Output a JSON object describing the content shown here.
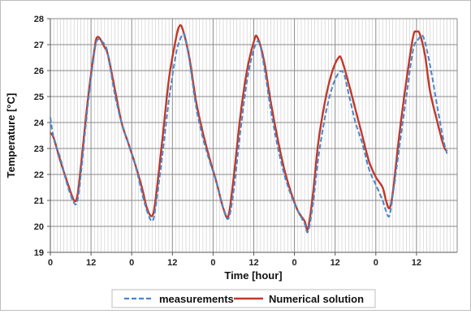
{
  "chart_data": {
    "type": "line",
    "title": "",
    "xlabel": "Time [hour]",
    "ylabel": "Temperature [°C]",
    "xlim": [
      0,
      120
    ],
    "ylim": [
      19,
      28
    ],
    "yticks": [
      19,
      20,
      21,
      22,
      23,
      24,
      25,
      26,
      27,
      28
    ],
    "x_tick_positions": [
      0,
      12,
      24,
      36,
      48,
      60,
      72,
      84,
      96,
      108
    ],
    "x_tick_labels": [
      "0",
      "12",
      "0",
      "12",
      "0",
      "12",
      "0",
      "12",
      "0",
      "12"
    ],
    "grid": true,
    "legend_position": "bottom",
    "series": [
      {
        "name": "measurements",
        "style": "dashed",
        "color": "#4a86c8",
        "points": [
          [
            0,
            24.2
          ],
          [
            1,
            23.4
          ],
          [
            3,
            22.6
          ],
          [
            5,
            21.6
          ],
          [
            7,
            20.9
          ],
          [
            8,
            21.0
          ],
          [
            9,
            22.0
          ],
          [
            11,
            24.6
          ],
          [
            13,
            26.7
          ],
          [
            14,
            27.2
          ],
          [
            16,
            27.0
          ],
          [
            17,
            26.6
          ],
          [
            19,
            25.1
          ],
          [
            21,
            24.0
          ],
          [
            23,
            23.2
          ],
          [
            25,
            22.4
          ],
          [
            27,
            21.3
          ],
          [
            28.5,
            20.6
          ],
          [
            30,
            20.2
          ],
          [
            31,
            20.7
          ],
          [
            33,
            22.7
          ],
          [
            35,
            24.9
          ],
          [
            37,
            26.6
          ],
          [
            38,
            27.1
          ],
          [
            39.5,
            27.4
          ],
          [
            41,
            26.4
          ],
          [
            43,
            24.6
          ],
          [
            45,
            23.4
          ],
          [
            47,
            22.5
          ],
          [
            49,
            21.7
          ],
          [
            51,
            20.7
          ],
          [
            52.5,
            20.3
          ],
          [
            54,
            21.3
          ],
          [
            56,
            23.6
          ],
          [
            58,
            25.6
          ],
          [
            60,
            26.8
          ],
          [
            61.5,
            27.1
          ],
          [
            63,
            26.2
          ],
          [
            65,
            24.5
          ],
          [
            67,
            23.1
          ],
          [
            69,
            22.0
          ],
          [
            71,
            21.2
          ],
          [
            73,
            20.6
          ],
          [
            75,
            20.1
          ],
          [
            76,
            19.8
          ],
          [
            77.5,
            20.9
          ],
          [
            79,
            22.6
          ],
          [
            81,
            24.2
          ],
          [
            83,
            25.3
          ],
          [
            85,
            25.9
          ],
          [
            86.5,
            25.9
          ],
          [
            88,
            25.1
          ],
          [
            90,
            24.0
          ],
          [
            92,
            23.2
          ],
          [
            94,
            22.2
          ],
          [
            96,
            21.6
          ],
          [
            98,
            21.0
          ],
          [
            99,
            20.6
          ],
          [
            100,
            20.4
          ],
          [
            101,
            21.2
          ],
          [
            103,
            23.1
          ],
          [
            105,
            25.0
          ],
          [
            107,
            26.8
          ],
          [
            108.5,
            27.2
          ],
          [
            110,
            27.3
          ],
          [
            112,
            26.2
          ],
          [
            114,
            24.7
          ],
          [
            116,
            23.3
          ],
          [
            117,
            22.8
          ]
        ]
      },
      {
        "name": "Numerical solution",
        "style": "solid",
        "color": "#c0392b",
        "points": [
          [
            0,
            23.6
          ],
          [
            1,
            23.4
          ],
          [
            3,
            22.5
          ],
          [
            5,
            21.7
          ],
          [
            7,
            21.0
          ],
          [
            8,
            21.2
          ],
          [
            9,
            22.3
          ],
          [
            11,
            24.8
          ],
          [
            13,
            26.8
          ],
          [
            14,
            27.3
          ],
          [
            16,
            26.9
          ],
          [
            17,
            26.6
          ],
          [
            19,
            25.3
          ],
          [
            21,
            24.0
          ],
          [
            23,
            23.2
          ],
          [
            25,
            22.4
          ],
          [
            27,
            21.5
          ],
          [
            28.5,
            20.7
          ],
          [
            30,
            20.4
          ],
          [
            31,
            21.0
          ],
          [
            33,
            23.3
          ],
          [
            35,
            25.7
          ],
          [
            37,
            27.2
          ],
          [
            38,
            27.7
          ],
          [
            39,
            27.6
          ],
          [
            41,
            26.5
          ],
          [
            43,
            24.8
          ],
          [
            45,
            23.6
          ],
          [
            47,
            22.6
          ],
          [
            49,
            21.7
          ],
          [
            51,
            20.7
          ],
          [
            52.5,
            20.4
          ],
          [
            54,
            21.8
          ],
          [
            56,
            24.2
          ],
          [
            58,
            26.0
          ],
          [
            60,
            27.1
          ],
          [
            61,
            27.3
          ],
          [
            63,
            26.4
          ],
          [
            65,
            24.8
          ],
          [
            67,
            23.4
          ],
          [
            69,
            22.2
          ],
          [
            71,
            21.3
          ],
          [
            73,
            20.6
          ],
          [
            75,
            20.2
          ],
          [
            76,
            19.9
          ],
          [
            77.5,
            21.3
          ],
          [
            79,
            23.2
          ],
          [
            81,
            24.8
          ],
          [
            83,
            25.9
          ],
          [
            85,
            26.5
          ],
          [
            86,
            26.4
          ],
          [
            88,
            25.5
          ],
          [
            90,
            24.5
          ],
          [
            92,
            23.5
          ],
          [
            94,
            22.5
          ],
          [
            96,
            21.9
          ],
          [
            98,
            21.5
          ],
          [
            99,
            21.0
          ],
          [
            100,
            20.7
          ],
          [
            101,
            21.3
          ],
          [
            103,
            23.6
          ],
          [
            105,
            25.6
          ],
          [
            107,
            27.3
          ],
          [
            108,
            27.5
          ],
          [
            109,
            27.4
          ],
          [
            110.5,
            26.6
          ],
          [
            112,
            25.2
          ],
          [
            114,
            24.1
          ],
          [
            116,
            23.1
          ],
          [
            117,
            22.9
          ]
        ]
      }
    ]
  }
}
